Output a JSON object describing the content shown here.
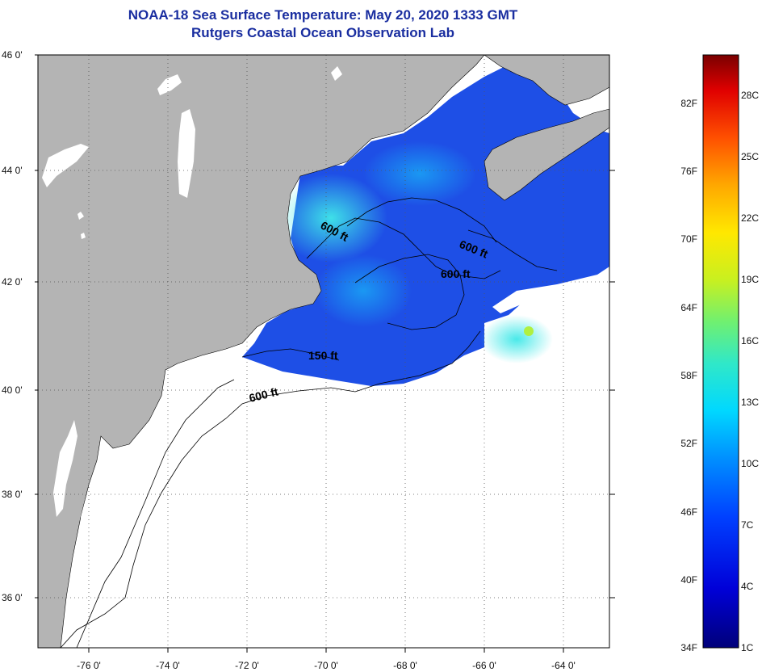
{
  "title": {
    "line1": "NOAA-18 Sea Surface Temperature:  May 20, 2020 1333 GMT",
    "line2": "Rutgers Coastal Ocean Observation Lab"
  },
  "map": {
    "lat_labels": [
      "46 0'",
      "44 0'",
      "42 0'",
      "40 0'",
      "38 0'",
      "36 0'"
    ],
    "lon_labels": [
      "-76 0'",
      "-74 0'",
      "-72 0'",
      "-70 0'",
      "-68 0'",
      "-66 0'",
      "-64 0'"
    ],
    "contours": {
      "label_a": "600 ft",
      "label_b": "600 ft",
      "label_c": "600 ft",
      "label_d": "150 ft",
      "label_e": "600 ft"
    },
    "colors": {
      "land": "#b4b4b4",
      "ocean_nodata": "#ffffff",
      "sst_cold": "#1e4fe6",
      "sst_mid": "#1a8cf0",
      "sst_warm": "#33e0e6"
    }
  },
  "color_scale": {
    "fahrenheit": [
      "82F",
      "76F",
      "70F",
      "64F",
      "58F",
      "52F",
      "46F",
      "40F",
      "34F"
    ],
    "celsius": [
      "28C",
      "25C",
      "22C",
      "19C",
      "16C",
      "13C",
      "10C",
      "7C",
      "4C",
      "1C"
    ]
  }
}
